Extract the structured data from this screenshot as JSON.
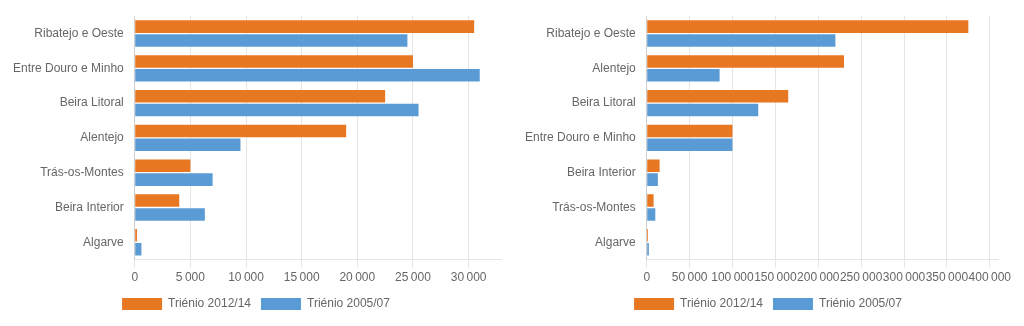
{
  "chart_data": [
    {
      "type": "bar",
      "orientation": "horizontal",
      "categories": [
        "Ribatejo e Oeste",
        "Entre Douro e Minho",
        "Beira Litoral",
        "Alentejo",
        "Trás-os-Montes",
        "Beira Interior",
        "Algarve"
      ],
      "series": [
        {
          "name": "Triénio 2012/14",
          "color": "#E87722",
          "values": [
            30500,
            25000,
            22500,
            19000,
            5000,
            4000,
            200
          ]
        },
        {
          "name": "Triénio 2005/07",
          "color": "#5B9BD5",
          "values": [
            24500,
            31000,
            25500,
            9500,
            7000,
            6300,
            600
          ]
        }
      ],
      "xlim": [
        0,
        33000
      ],
      "xticks": [
        0,
        {
          "value": 5000,
          "label": "5 000"
        },
        {
          "value": 10000,
          "label": "10 000"
        },
        {
          "value": 15000,
          "label": "15 000"
        },
        {
          "value": 20000,
          "label": "20 000"
        },
        {
          "value": 25000,
          "label": "25 000"
        },
        {
          "value": 30000,
          "label": "30 000"
        }
      ],
      "grid": true,
      "legend": "bottom"
    },
    {
      "type": "bar",
      "orientation": "horizontal",
      "categories": [
        "Ribatejo e Oeste",
        "Alentejo",
        "Beira Litoral",
        "Entre Douro e Minho",
        "Beira Interior",
        "Trás-os-Montes",
        "Algarve"
      ],
      "series": [
        {
          "name": "Triénio 2012/14",
          "color": "#E87722",
          "values": [
            375000,
            230000,
            165000,
            100000,
            15000,
            8000,
            1500
          ]
        },
        {
          "name": "Triénio 2005/07",
          "color": "#5B9BD5",
          "values": [
            220000,
            85000,
            130000,
            100000,
            13000,
            10000,
            2500
          ]
        }
      ],
      "xlim": [
        0,
        410000
      ],
      "xticks": [
        0,
        {
          "value": 50000,
          "label": "50 000"
        },
        {
          "value": 100000,
          "label": "100 000"
        },
        {
          "value": 150000,
          "label": "150 000"
        },
        {
          "value": 200000,
          "label": "200 000"
        },
        {
          "value": 250000,
          "label": "250 000"
        },
        {
          "value": 300000,
          "label": "300 000"
        },
        {
          "value": 350000,
          "label": "350 000"
        },
        {
          "value": 400000,
          "label": "400 000"
        }
      ],
      "grid": true,
      "legend": "bottom"
    }
  ]
}
